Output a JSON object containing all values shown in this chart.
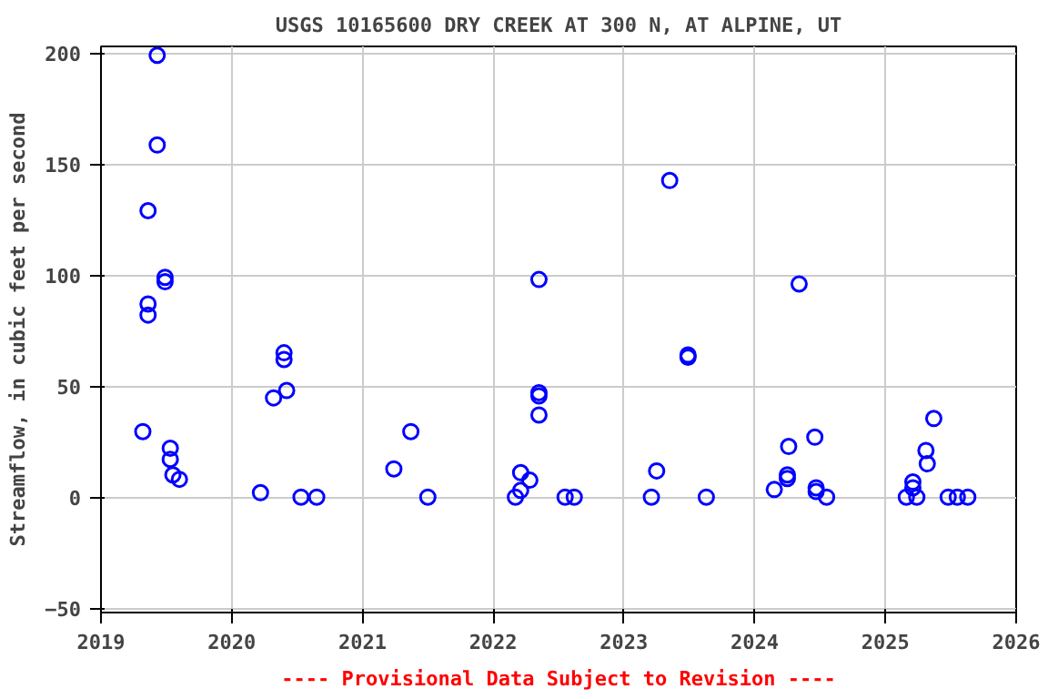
{
  "chart_data": {
    "type": "scatter",
    "title": "USGS 10165600 DRY CREEK AT 300 N, AT ALPINE, UT",
    "ylabel": "Streamflow, in cubic feet per second",
    "annotations": [
      "---- Provisional Data Subject to Revision ----"
    ],
    "x": [
      2019.32,
      2019.36,
      2019.36,
      2019.36,
      2019.43,
      2019.43,
      2019.49,
      2019.49,
      2019.53,
      2019.53,
      2019.55,
      2019.6,
      2020.22,
      2020.32,
      2020.42,
      2020.4,
      2020.4,
      2020.53,
      2020.65,
      2021.24,
      2021.37,
      2021.5,
      2022.17,
      2022.21,
      2022.21,
      2022.28,
      2022.35,
      2022.35,
      2022.35,
      2022.35,
      2022.55,
      2022.62,
      2023.21,
      2023.25,
      2023.35,
      2023.49,
      2023.49,
      2023.63,
      2024.15,
      2024.25,
      2024.25,
      2024.26,
      2024.34,
      2024.46,
      2024.47,
      2024.47,
      2024.55,
      2025.16,
      2025.21,
      2025.21,
      2025.24,
      2025.31,
      2025.32,
      2025.37,
      2025.48,
      2025.55,
      2025.63
    ],
    "values": [
      29.5,
      82,
      87,
      129,
      199,
      158.6,
      99,
      97,
      22,
      17,
      10,
      8,
      2,
      44.7,
      48,
      65,
      62,
      0,
      0,
      12.7,
      29.5,
      0,
      0,
      3,
      11,
      7.6,
      98,
      47,
      45.6,
      37,
      0,
      0,
      0,
      11.8,
      142.6,
      64,
      63,
      0,
      3.4,
      8.4,
      10,
      22.8,
      96,
      27,
      4.2,
      2.5,
      0,
      0,
      6.8,
      4.2,
      0,
      21,
      15,
      35.4,
      0,
      0,
      0
    ],
    "color": "#0000ff",
    "marker": "circle",
    "grid": true,
    "xlim": [
      2019,
      2026
    ],
    "xticks": [
      2019,
      2020,
      2021,
      2022,
      2023,
      2024,
      2025,
      2026
    ],
    "ylim": [
      -52,
      203
    ],
    "yticks": [
      -50,
      0,
      50,
      100,
      150,
      200
    ]
  }
}
